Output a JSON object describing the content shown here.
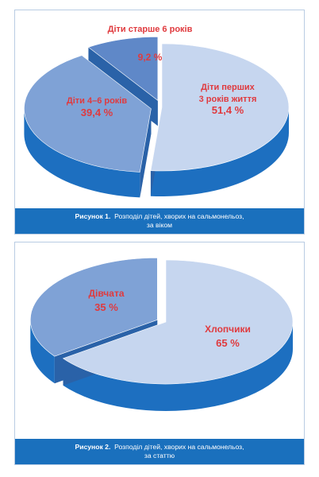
{
  "figures": [
    {
      "caption_prefix": "Рисунок 1.",
      "caption_line1": "Розподіл дітей, хворих на сальмонельоз,",
      "caption_line2": "за віком"
    },
    {
      "caption_prefix": "Рисунок 2.",
      "caption_line1": "Розподіл дітей, хворих на сальмонельоз,",
      "caption_line2": "за статтю"
    }
  ],
  "chart_data": [
    {
      "type": "pie",
      "style": "3d-exploded",
      "slices": [
        {
          "label_lines": [
            "Діти перших",
            "3 років життя"
          ],
          "value": 51.4,
          "value_text": "51,4 %",
          "color": "#c6d6ef",
          "side_color": "#1d6fc0"
        },
        {
          "label_lines": [
            "Діти 4–6 років"
          ],
          "value": 39.4,
          "value_text": "39,4 %",
          "color": "#7fa2d6",
          "side_color": "#1d6fc0"
        },
        {
          "label_lines": [
            "Діти старше 6 років"
          ],
          "value": 9.2,
          "value_text": "9,2 %",
          "color": "#5f88c8",
          "side_color": "#1d6fc0"
        }
      ]
    },
    {
      "type": "pie",
      "style": "3d-exploded",
      "slices": [
        {
          "label_lines": [
            "Хлопчики"
          ],
          "value": 65,
          "value_text": "65 %",
          "color": "#c6d6ef",
          "side_color": "#1d6fc0"
        },
        {
          "label_lines": [
            "Дівчата"
          ],
          "value": 35,
          "value_text": "35 %",
          "color": "#7fa2d6",
          "side_color": "#1d6fc0"
        }
      ]
    }
  ]
}
